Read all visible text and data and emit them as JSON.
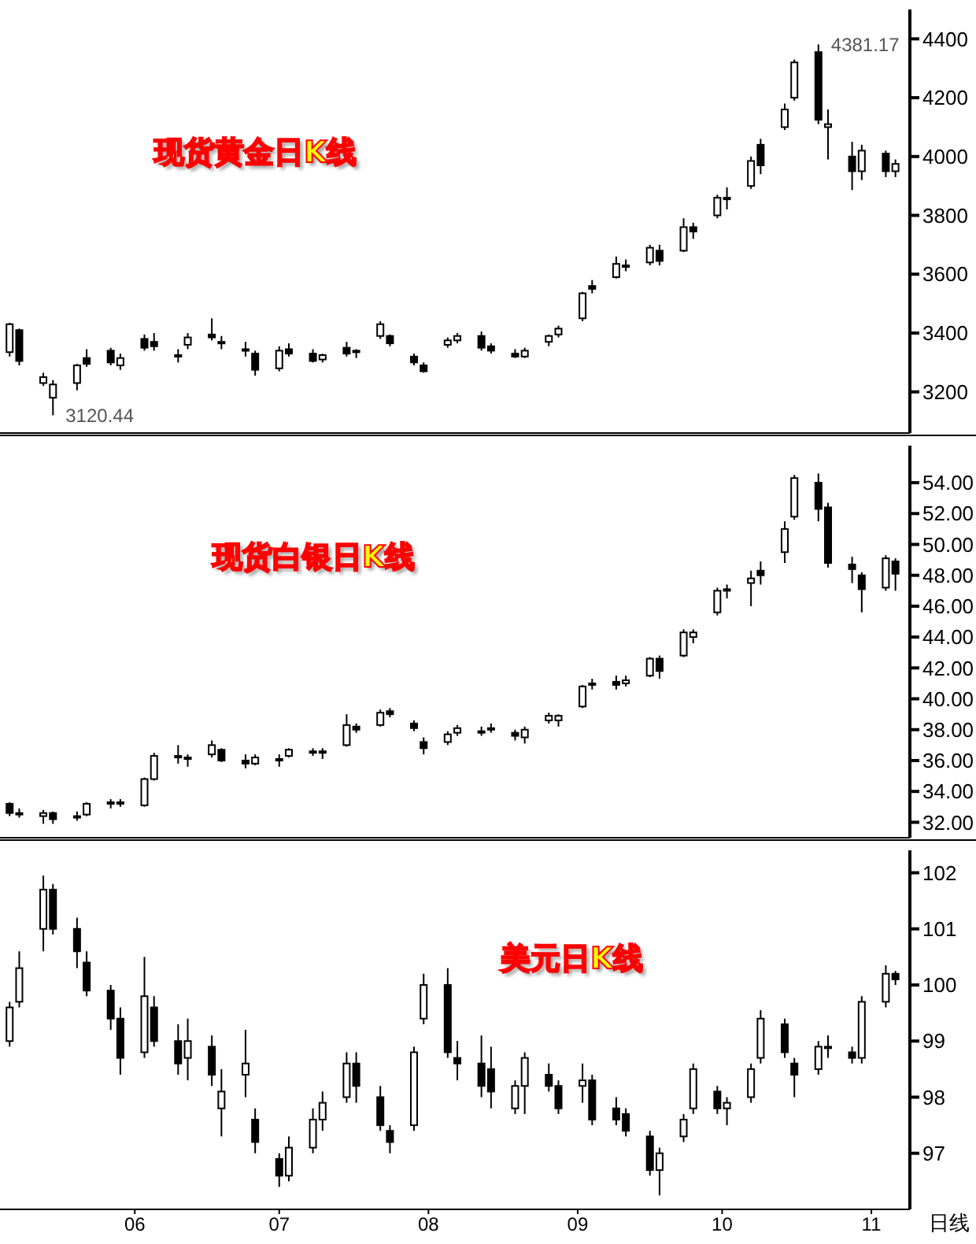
{
  "chart_data": [
    {
      "type": "candlestick",
      "title": "现货黄金日K线",
      "tick_labels": "y",
      "x": [
        "--05-06",
        "--05-08",
        "--05-13",
        "--05-15",
        "--05-20",
        "--05-22",
        "--05-27",
        "--05-29",
        "--06-03",
        "--06-05",
        "--06-10",
        "--06-12",
        "--06-17",
        "--06-19",
        "--06-24",
        "--06-26",
        "--07-01",
        "--07-03",
        "--07-08",
        "--07-10",
        "--07-15",
        "--07-17",
        "--07-22",
        "--07-24",
        "--07-29",
        "--07-31",
        "--08-05",
        "--08-07",
        "--08-12",
        "--08-14",
        "--08-19",
        "--08-21",
        "--08-26",
        "--08-28",
        "--09-02",
        "--09-04",
        "--09-09",
        "--09-11",
        "--09-16",
        "--09-18",
        "--09-23",
        "--09-25",
        "--09-30",
        "--10-02",
        "--10-07",
        "--10-09",
        "--10-14",
        "--10-16",
        "--10-21",
        "--10-23",
        "--10-28",
        "--10-30",
        "--11-04",
        "--11-06"
      ],
      "ohlc": [
        [
          3335,
          3435,
          3320,
          3430
        ],
        [
          3410,
          3415,
          3290,
          3305
        ],
        [
          3230,
          3265,
          3220,
          3250
        ],
        [
          3180,
          3240,
          3120.44,
          3225
        ],
        [
          3230,
          3295,
          3205,
          3290
        ],
        [
          3315,
          3345,
          3285,
          3295
        ],
        [
          3340,
          3350,
          3290,
          3300
        ],
        [
          3290,
          3330,
          3275,
          3315
        ],
        [
          3380,
          3395,
          3340,
          3350
        ],
        [
          3370,
          3400,
          3340,
          3355
        ],
        [
          3320,
          3345,
          3300,
          3325
        ],
        [
          3360,
          3400,
          3345,
          3385
        ],
        [
          3395,
          3450,
          3375,
          3385
        ],
        [
          3370,
          3390,
          3345,
          3365
        ],
        [
          3340,
          3370,
          3320,
          3345
        ],
        [
          3330,
          3340,
          3255,
          3275
        ],
        [
          3280,
          3355,
          3270,
          3340
        ],
        [
          3345,
          3365,
          3320,
          3330
        ],
        [
          3330,
          3345,
          3300,
          3305
        ],
        [
          3310,
          3330,
          3300,
          3325
        ],
        [
          3350,
          3370,
          3320,
          3330
        ],
        [
          3335,
          3345,
          3315,
          3340
        ],
        [
          3390,
          3440,
          3380,
          3430
        ],
        [
          3390,
          3395,
          3355,
          3365
        ],
        [
          3320,
          3330,
          3290,
          3300
        ],
        [
          3290,
          3300,
          3265,
          3270
        ],
        [
          3360,
          3385,
          3350,
          3375
        ],
        [
          3375,
          3400,
          3365,
          3390
        ],
        [
          3390,
          3405,
          3340,
          3350
        ],
        [
          3355,
          3365,
          3330,
          3340
        ],
        [
          3330,
          3345,
          3315,
          3320
        ],
        [
          3320,
          3350,
          3315,
          3340
        ],
        [
          3370,
          3395,
          3355,
          3390
        ],
        [
          3395,
          3425,
          3385,
          3415
        ],
        [
          3450,
          3540,
          3440,
          3535
        ],
        [
          3560,
          3580,
          3535,
          3550
        ],
        [
          3590,
          3660,
          3585,
          3635
        ],
        [
          3630,
          3650,
          3610,
          3630
        ],
        [
          3640,
          3700,
          3630,
          3690
        ],
        [
          3680,
          3700,
          3630,
          3645
        ],
        [
          3680,
          3790,
          3675,
          3760
        ],
        [
          3760,
          3775,
          3720,
          3745
        ],
        [
          3800,
          3870,
          3790,
          3860
        ],
        [
          3860,
          3895,
          3820,
          3855
        ],
        [
          3900,
          4000,
          3890,
          3985
        ],
        [
          4040,
          4060,
          3940,
          3970
        ],
        [
          4100,
          4180,
          4090,
          4160
        ],
        [
          4200,
          4330,
          4190,
          4320
        ],
        [
          4355,
          4381.17,
          4110,
          4125
        ],
        [
          4100,
          4160,
          3990,
          4110
        ],
        [
          4000,
          4050,
          3886,
          3950
        ],
        [
          3950,
          4040,
          3920,
          4020
        ],
        [
          4010,
          4020,
          3930,
          3950
        ],
        [
          3950,
          3990,
          3930,
          3975
        ]
      ],
      "xlim": [
        "--05-04",
        "--11-09"
      ],
      "ylim": [
        3060,
        4500
      ],
      "yticks": [
        3200,
        3400,
        3600,
        3800,
        4000,
        4200,
        4400
      ],
      "annotations": [
        {
          "text": "4381.17",
          "x": "--10-21",
          "y": 4381.17
        },
        {
          "text": "3120.44",
          "x": "--05-15",
          "y": 3120.44
        }
      ]
    },
    {
      "type": "candlestick",
      "title": "现货白银日K线",
      "tick_labels": "y",
      "x": [
        "--05-06",
        "--05-08",
        "--05-13",
        "--05-15",
        "--05-20",
        "--05-22",
        "--05-27",
        "--05-29",
        "--06-03",
        "--06-05",
        "--06-10",
        "--06-12",
        "--06-17",
        "--06-19",
        "--06-24",
        "--06-26",
        "--07-01",
        "--07-03",
        "--07-08",
        "--07-10",
        "--07-15",
        "--07-17",
        "--07-22",
        "--07-24",
        "--07-29",
        "--07-31",
        "--08-05",
        "--08-07",
        "--08-12",
        "--08-14",
        "--08-19",
        "--08-21",
        "--08-26",
        "--08-28",
        "--09-02",
        "--09-04",
        "--09-09",
        "--09-11",
        "--09-16",
        "--09-18",
        "--09-23",
        "--09-25",
        "--09-30",
        "--10-02",
        "--10-07",
        "--10-09",
        "--10-14",
        "--10-16",
        "--10-21",
        "--10-23",
        "--10-28",
        "--10-30",
        "--11-04",
        "--11-06"
      ],
      "ohlc": [
        [
          33.2,
          33.3,
          32.4,
          32.6
        ],
        [
          32.6,
          32.9,
          32.3,
          32.5
        ],
        [
          32.4,
          32.8,
          31.9,
          32.6
        ],
        [
          32.6,
          32.7,
          31.9,
          32.2
        ],
        [
          32.3,
          32.7,
          32.1,
          32.4
        ],
        [
          32.5,
          33.3,
          32.4,
          33.2
        ],
        [
          33.3,
          33.5,
          32.9,
          33.2
        ],
        [
          33.2,
          33.5,
          33.0,
          33.3
        ],
        [
          33.1,
          34.9,
          33.0,
          34.8
        ],
        [
          34.8,
          36.5,
          34.7,
          36.3
        ],
        [
          36.3,
          37.0,
          35.8,
          36.3
        ],
        [
          36.2,
          36.4,
          35.6,
          36.2
        ],
        [
          36.4,
          37.3,
          36.2,
          37.0
        ],
        [
          36.7,
          36.8,
          35.9,
          36.0
        ],
        [
          36.0,
          36.4,
          35.5,
          35.8
        ],
        [
          35.8,
          36.4,
          35.7,
          36.2
        ],
        [
          36.0,
          36.4,
          35.6,
          36.1
        ],
        [
          36.3,
          36.8,
          36.2,
          36.7
        ],
        [
          36.6,
          36.8,
          36.3,
          36.5
        ],
        [
          36.5,
          36.8,
          36.1,
          36.6
        ],
        [
          37.0,
          39.0,
          36.9,
          38.3
        ],
        [
          38.2,
          38.4,
          37.8,
          38.0
        ],
        [
          38.3,
          39.3,
          38.2,
          39.1
        ],
        [
          39.2,
          39.4,
          38.8,
          39.0
        ],
        [
          38.4,
          38.6,
          37.9,
          38.1
        ],
        [
          37.2,
          37.5,
          36.4,
          36.8
        ],
        [
          37.2,
          37.9,
          37.0,
          37.7
        ],
        [
          37.8,
          38.3,
          37.6,
          38.1
        ],
        [
          37.9,
          38.2,
          37.6,
          37.8
        ],
        [
          38.1,
          38.4,
          37.8,
          38.0
        ],
        [
          37.8,
          38.0,
          37.3,
          37.6
        ],
        [
          37.5,
          38.2,
          37.1,
          38.0
        ],
        [
          38.6,
          39.1,
          38.4,
          38.9
        ],
        [
          38.6,
          39.0,
          38.2,
          38.9
        ],
        [
          39.5,
          40.9,
          39.4,
          40.8
        ],
        [
          40.9,
          41.3,
          40.6,
          41.0
        ],
        [
          41.1,
          41.5,
          40.6,
          40.9
        ],
        [
          41.0,
          41.5,
          40.8,
          41.2
        ],
        [
          41.5,
          42.7,
          41.4,
          42.6
        ],
        [
          42.6,
          42.8,
          41.3,
          41.8
        ],
        [
          42.8,
          44.5,
          42.7,
          44.3
        ],
        [
          44.0,
          44.5,
          43.6,
          44.3
        ],
        [
          45.6,
          47.2,
          45.4,
          47.0
        ],
        [
          47.0,
          47.4,
          46.5,
          47.1
        ],
        [
          47.5,
          48.3,
          46.0,
          47.8
        ],
        [
          48.3,
          48.9,
          47.4,
          48.0
        ],
        [
          49.5,
          51.5,
          48.8,
          51.0
        ],
        [
          51.8,
          54.5,
          51.6,
          54.3
        ],
        [
          54.0,
          54.6,
          51.5,
          52.3
        ],
        [
          52.4,
          52.7,
          48.5,
          48.8
        ],
        [
          48.7,
          49.2,
          47.5,
          48.4
        ],
        [
          48.0,
          48.2,
          45.6,
          47.1
        ],
        [
          47.2,
          49.3,
          47.0,
          49.1
        ],
        [
          48.9,
          49.1,
          47.0,
          48.1
        ]
      ],
      "xlim": [
        "--05-04",
        "--11-09"
      ],
      "ylim": [
        31,
        56.4
      ],
      "yticks": [
        {
          "value": 32,
          "label": "32.00"
        },
        {
          "value": 34,
          "label": "34.00"
        },
        {
          "value": 36,
          "label": "36.00"
        },
        {
          "value": 38,
          "label": "38.00"
        },
        {
          "value": 40,
          "label": "40.00"
        },
        {
          "value": 42,
          "label": "42.00"
        },
        {
          "value": 44,
          "label": "44.00"
        },
        {
          "value": 46,
          "label": "46.00"
        },
        {
          "value": 48,
          "label": "48.00"
        },
        {
          "value": 50,
          "label": "50.00"
        },
        {
          "value": 52,
          "label": "52.00"
        },
        {
          "value": 54,
          "label": "54.00"
        }
      ]
    },
    {
      "type": "candlestick",
      "title": "美元日K线",
      "x": [
        "--05-06",
        "--05-08",
        "--05-13",
        "--05-15",
        "--05-20",
        "--05-22",
        "--05-27",
        "--05-29",
        "--06-03",
        "--06-05",
        "--06-10",
        "--06-12",
        "--06-17",
        "--06-19",
        "--06-24",
        "--06-26",
        "--07-01",
        "--07-03",
        "--07-08",
        "--07-10",
        "--07-15",
        "--07-17",
        "--07-22",
        "--07-24",
        "--07-29",
        "--07-31",
        "--08-05",
        "--08-07",
        "--08-12",
        "--08-14",
        "--08-19",
        "--08-21",
        "--08-26",
        "--08-28",
        "--09-02",
        "--09-04",
        "--09-09",
        "--09-11",
        "--09-16",
        "--09-18",
        "--09-23",
        "--09-25",
        "--09-30",
        "--10-02",
        "--10-07",
        "--10-09",
        "--10-14",
        "--10-16",
        "--10-21",
        "--10-23",
        "--10-28",
        "--10-30",
        "--11-04",
        "--11-06"
      ],
      "ohlc": [
        [
          99.0,
          99.7,
          98.9,
          99.6
        ],
        [
          99.7,
          100.6,
          99.6,
          100.3
        ],
        [
          101.0,
          101.95,
          100.6,
          101.7
        ],
        [
          101.7,
          101.8,
          100.9,
          101.0
        ],
        [
          101.0,
          101.2,
          100.3,
          100.6
        ],
        [
          100.4,
          100.6,
          99.8,
          99.9
        ],
        [
          99.9,
          100.0,
          99.2,
          99.4
        ],
        [
          99.4,
          99.6,
          98.4,
          98.7
        ],
        [
          98.8,
          100.5,
          98.7,
          99.8
        ],
        [
          99.6,
          99.8,
          98.9,
          99.0
        ],
        [
          99.0,
          99.3,
          98.4,
          98.6
        ],
        [
          98.7,
          99.4,
          98.3,
          99.0
        ],
        [
          98.9,
          99.1,
          98.2,
          98.4
        ],
        [
          97.8,
          98.5,
          97.3,
          98.1
        ],
        [
          98.4,
          99.2,
          98.0,
          98.6
        ],
        [
          97.6,
          97.8,
          97.0,
          97.2
        ],
        [
          96.9,
          97.0,
          96.4,
          96.6
        ],
        [
          96.6,
          97.3,
          96.5,
          97.1
        ],
        [
          97.1,
          97.8,
          97.0,
          97.6
        ],
        [
          97.6,
          98.1,
          97.4,
          97.9
        ],
        [
          98.0,
          98.8,
          97.9,
          98.6
        ],
        [
          98.6,
          98.8,
          97.9,
          98.2
        ],
        [
          98.0,
          98.2,
          97.4,
          97.5
        ],
        [
          97.4,
          97.5,
          97.0,
          97.2
        ],
        [
          97.5,
          98.9,
          97.4,
          98.8
        ],
        [
          99.4,
          100.2,
          99.3,
          100.0
        ],
        [
          100.0,
          100.3,
          98.7,
          98.8
        ],
        [
          98.7,
          99.0,
          98.3,
          98.6
        ],
        [
          98.6,
          99.1,
          98.0,
          98.2
        ],
        [
          98.5,
          98.9,
          97.8,
          98.1
        ],
        [
          97.8,
          98.3,
          97.7,
          98.2
        ],
        [
          98.2,
          98.8,
          97.7,
          98.7
        ],
        [
          98.4,
          98.6,
          98.1,
          98.2
        ],
        [
          98.2,
          98.3,
          97.7,
          97.8
        ],
        [
          98.2,
          98.6,
          97.9,
          98.3
        ],
        [
          98.3,
          98.4,
          97.5,
          97.6
        ],
        [
          97.8,
          98.0,
          97.5,
          97.6
        ],
        [
          97.7,
          97.8,
          97.3,
          97.4
        ],
        [
          97.3,
          97.4,
          96.6,
          96.7
        ],
        [
          96.7,
          97.1,
          96.25,
          97.0
        ],
        [
          97.3,
          97.7,
          97.2,
          97.6
        ],
        [
          97.8,
          98.6,
          97.7,
          98.5
        ],
        [
          98.1,
          98.2,
          97.7,
          97.8
        ],
        [
          97.8,
          98.0,
          97.5,
          97.9
        ],
        [
          98.0,
          98.6,
          97.9,
          98.5
        ],
        [
          98.7,
          99.55,
          98.6,
          99.4
        ],
        [
          99.3,
          99.4,
          98.7,
          98.8
        ],
        [
          98.6,
          98.7,
          98.0,
          98.4
        ],
        [
          98.5,
          99.0,
          98.4,
          98.9
        ],
        [
          98.9,
          99.1,
          98.7,
          98.9
        ],
        [
          98.8,
          98.9,
          98.6,
          98.7
        ],
        [
          98.7,
          99.8,
          98.6,
          99.7
        ],
        [
          99.7,
          100.35,
          99.6,
          100.2
        ],
        [
          100.2,
          100.25,
          100.0,
          100.1
        ]
      ],
      "xlim": [
        "--05-04",
        "--11-09"
      ],
      "xticks": [
        {
          "value": "--06-01",
          "label": "06"
        },
        {
          "value": "--07-01",
          "label": "07"
        },
        {
          "value": "--08-01",
          "label": "08"
        },
        {
          "value": "--09-01",
          "label": "09"
        },
        {
          "value": "--10-01",
          "label": "10"
        },
        {
          "value": "--11-01",
          "label": "11"
        }
      ],
      "ylim": [
        96,
        102.4
      ],
      "yticks": [
        97,
        98,
        99,
        100,
        101,
        102
      ],
      "annotations": [
        "日线"
      ]
    }
  ]
}
